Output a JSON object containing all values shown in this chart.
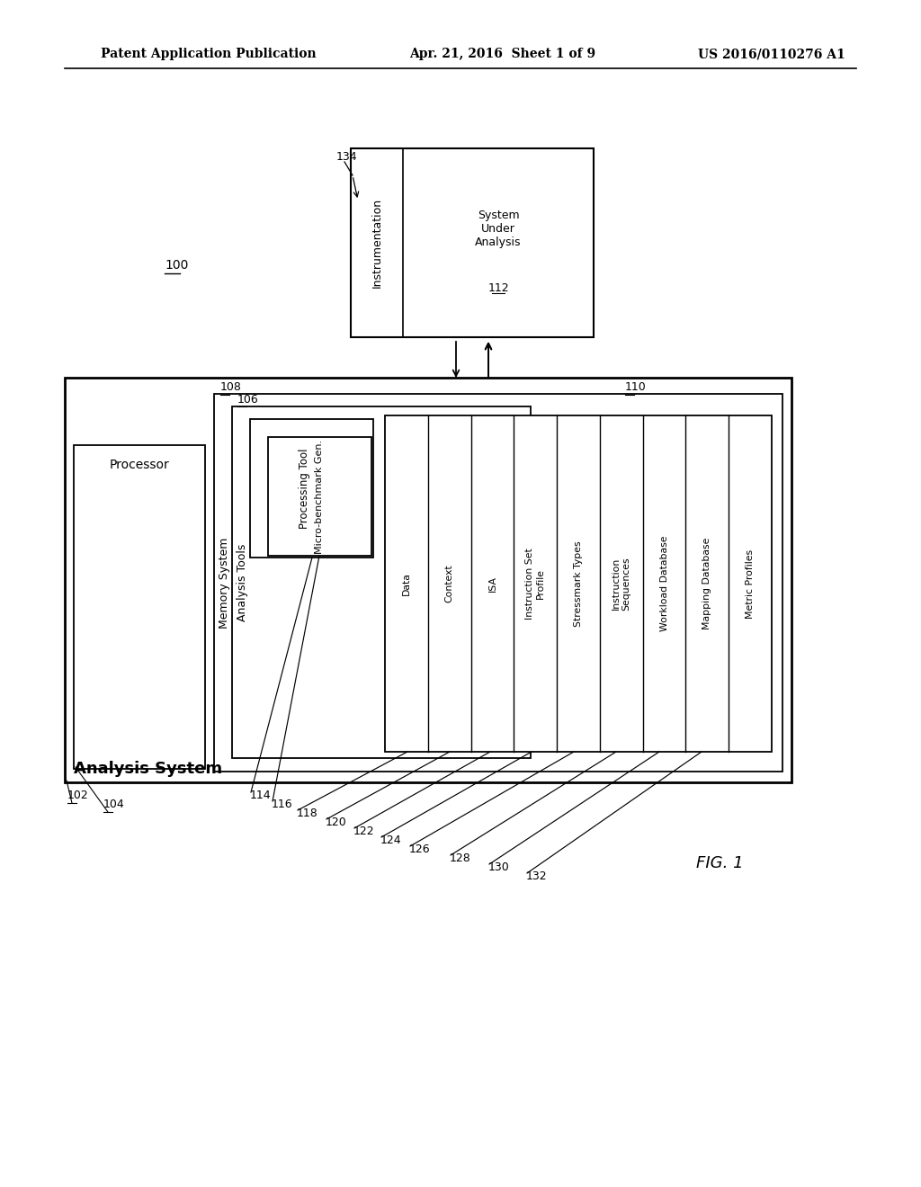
{
  "bg_color": "#ffffff",
  "header_left": "Patent Application Publication",
  "header_center": "Apr. 21, 2016  Sheet 1 of 9",
  "header_right": "US 2016/0110276 A1",
  "fig_label": "FIG. 1",
  "line_color": "#000000",
  "lw": 1.5,
  "col_labels": [
    "Data",
    "Context",
    "ISA",
    "Instruction Set\nProfile",
    "Stressmark Types",
    "Instruction\nSequences",
    "Workload Database",
    "Mapping Database",
    "Metric Profiles"
  ]
}
